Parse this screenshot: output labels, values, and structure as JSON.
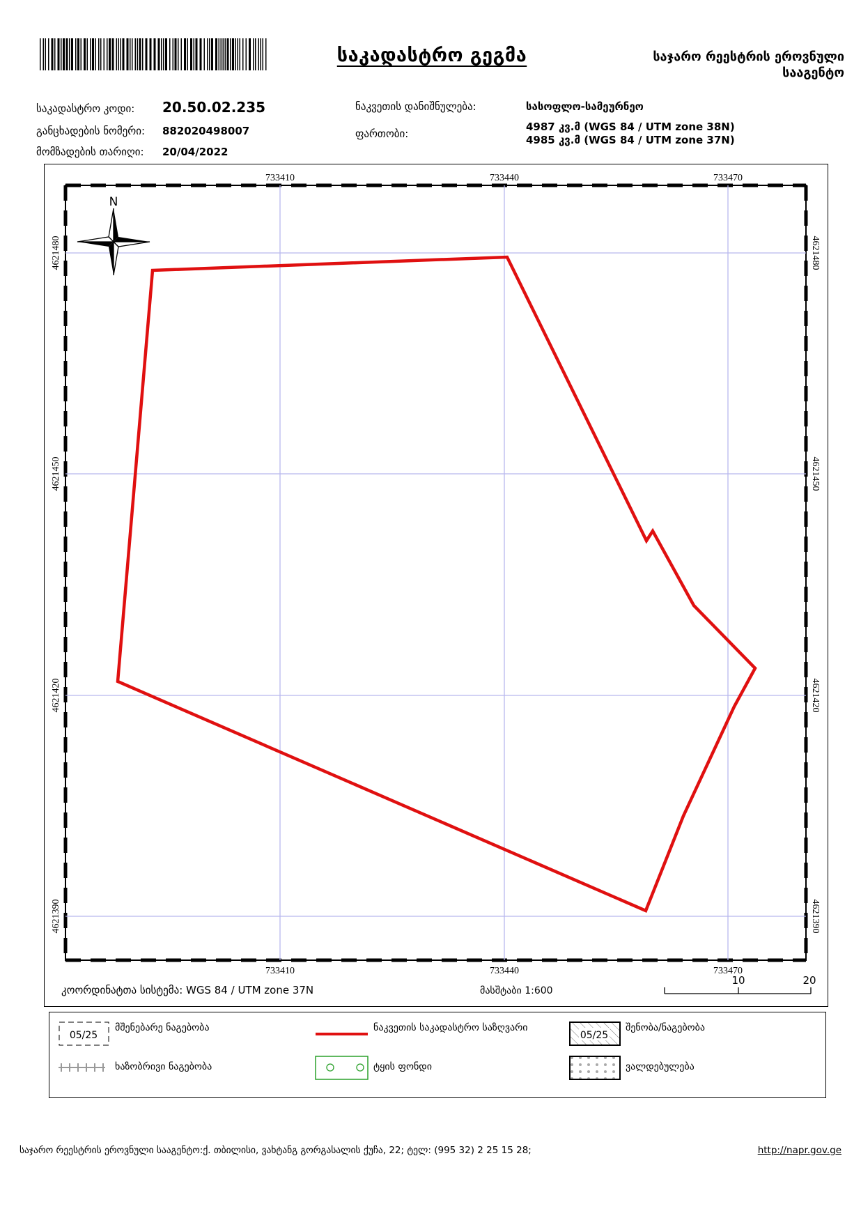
{
  "header": {
    "title": "საკადასტრო გეგმა",
    "agency_line1": "საჯარო რეესტრის ეროვნული",
    "agency_line2": "სააგენტო"
  },
  "info": {
    "cadastral_code_label": "საკადასტრო კოდი:",
    "cadastral_code_value": "20.50.02.235",
    "application_number_label": "განცხადების ნომერი:",
    "application_number_value": "882020498007",
    "preparation_date_label": "მომზადების თარიღი:",
    "preparation_date_value": "20/04/2022",
    "purpose_label": "ნაკვეთის დანიშნულება:",
    "purpose_value": "სასოფლო-სამეურნეო",
    "area_label": "ფართობი:",
    "area_value_1": "4987 კვ.მ (WGS 84 / UTM zone 38N)",
    "area_value_2": "4985 კვ.მ (WGS 84 / UTM zone 37N)"
  },
  "map": {
    "north_label": "N",
    "x_ticks": [
      "733410",
      "733440",
      "733470"
    ],
    "y_ticks": [
      "4621480",
      "4621450",
      "4621420",
      "4621390"
    ],
    "coordinate_system": "კოორდინატთა სისტემა: WGS 84 / UTM zone 37N",
    "scale_label": "მასშტაბი 1:600",
    "scalebar_labels": [
      "10",
      "20"
    ],
    "parcel_color": "#e01010",
    "grid_color": "#b8b8ee"
  },
  "legend": {
    "items": [
      {
        "label": "მშენებარე ნაგებობა",
        "symbol_text": "05/25"
      },
      {
        "label": "ნაკვეთის საკადასტრო საზღვარი"
      },
      {
        "label": "შენობა/ნაგებობა",
        "symbol_text": "05/25"
      },
      {
        "label": "ხაზობრივი ნაგებობა"
      },
      {
        "label": "ტყის ფონდი"
      },
      {
        "label": "ვალდებულება"
      }
    ]
  },
  "footer": {
    "address": "საჯარო რეესტრის ეროვნული სააგენტო:ქ. თბილისი, ვახტანგ გორგასალის ქუჩა, 22; ტელ: (995 32) 2 25 15 28;",
    "link": "http://napr.gov.ge"
  }
}
